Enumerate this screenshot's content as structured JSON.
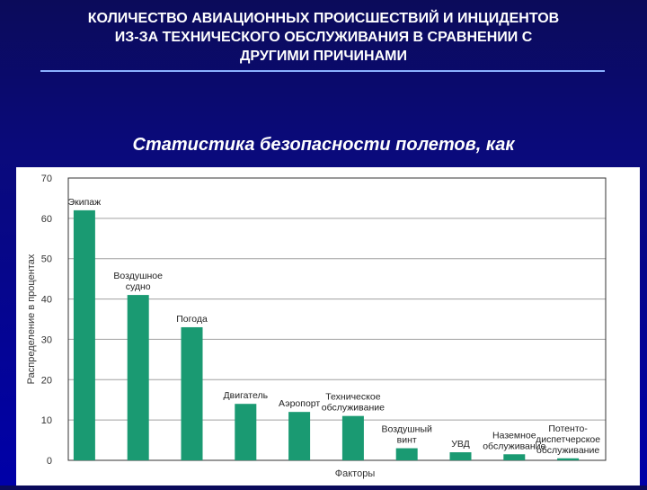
{
  "slide": {
    "title": "КОЛИЧЕСТВО АВИАЦИОННЫХ ПРОИСШЕСТВИЙ И ИНЦИДЕНТОВ\nИЗ-ЗА ТЕХНИЧЕСКОГО ОБСЛУЖИВАНИЯ В СРАВНЕНИИ С\nДРУГИМИ ПРИЧИНАМИ",
    "subtitle": "Статистика безопасности полетов, как"
  },
  "colors": {
    "bar": "#1a9a72",
    "grid": "#a0a0a0"
  },
  "chart_data": {
    "type": "bar",
    "categories": [
      [
        "Экипаж"
      ],
      [
        "Воздушное",
        "судно"
      ],
      [
        "Погода"
      ],
      [
        "Двигатель"
      ],
      [
        "Аэропорт"
      ],
      [
        "Техническое",
        "обслуживание"
      ],
      [
        "Воздушный",
        "винт"
      ],
      [
        "УВД"
      ],
      [
        "Наземное",
        "обслуживание"
      ],
      [
        "Потенто-",
        "диспетчерское",
        "обслуживание"
      ]
    ],
    "values": [
      62,
      41,
      33,
      14,
      12,
      11,
      3,
      2,
      1.5,
      0.5
    ],
    "xlabel": "Факторы",
    "ylabel": "Распределение в процентах",
    "ylim": [
      0,
      70
    ],
    "yticks": [
      0,
      10,
      20,
      30,
      40,
      50,
      60,
      70
    ],
    "grid": true
  }
}
